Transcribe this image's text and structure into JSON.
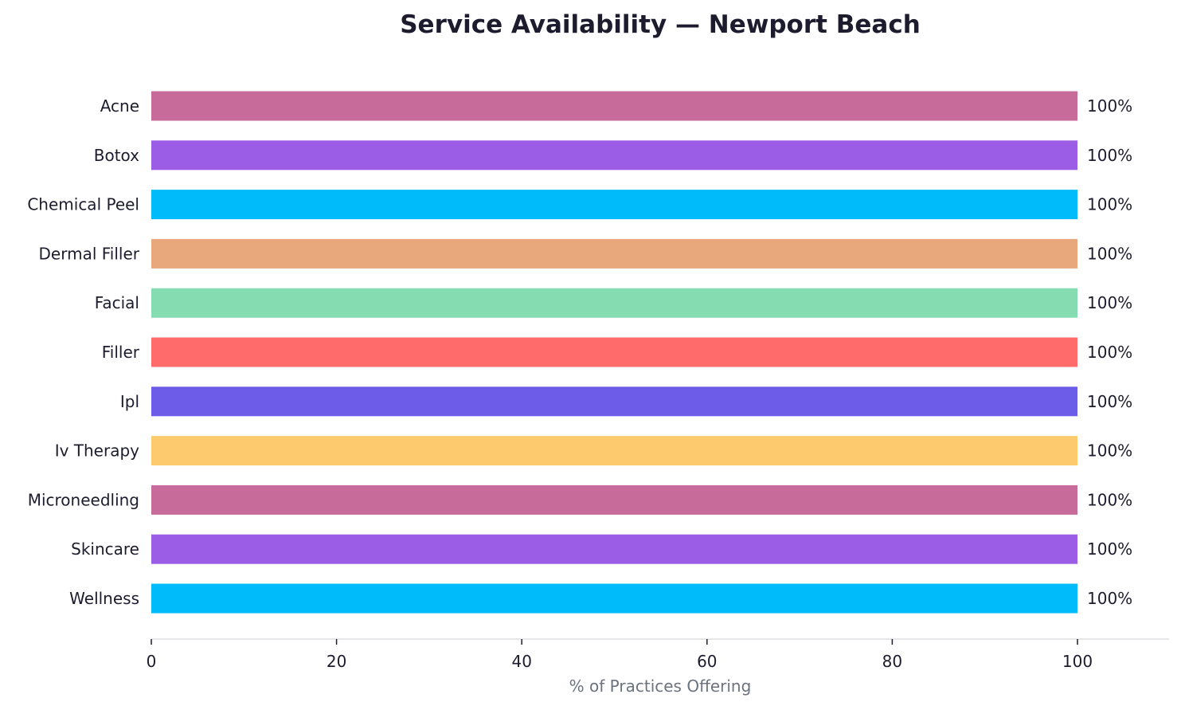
{
  "chart_data": {
    "type": "bar",
    "orientation": "horizontal",
    "title": "Service Availability — Newport Beach",
    "xlabel": "% of Practices Offering",
    "ylabel": "",
    "xlim": [
      0,
      110
    ],
    "xticks": [
      0,
      20,
      40,
      60,
      80,
      100
    ],
    "grid": false,
    "categories": [
      "Acne",
      "Botox",
      "Chemical Peel",
      "Dermal Filler",
      "Facial",
      "Filler",
      "Ipl",
      "Iv Therapy",
      "Microneedling",
      "Skincare",
      "Wellness"
    ],
    "values": [
      100,
      100,
      100,
      100,
      100,
      100,
      100,
      100,
      100,
      100,
      100
    ],
    "data_labels": [
      "100%",
      "100%",
      "100%",
      "100%",
      "100%",
      "100%",
      "100%",
      "100%",
      "100%",
      "100%",
      "100%"
    ],
    "colors": [
      "#c76b9b",
      "#9b5de5",
      "#00bbf9",
      "#e8a87c",
      "#84dcb0",
      "#ff6b6b",
      "#6c5ce7",
      "#fdcb6e",
      "#c76b9b",
      "#9b5de5",
      "#00bbf9"
    ]
  }
}
